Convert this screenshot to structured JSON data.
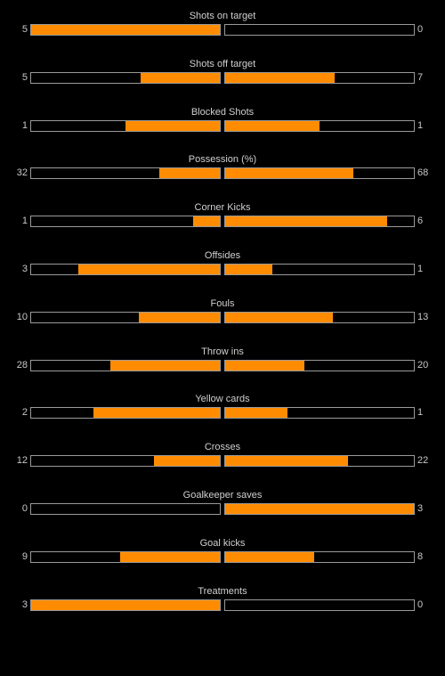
{
  "colors": {
    "background": "#000000",
    "bar_fill": "#ff8c00",
    "bar_border": "#9a9a9a",
    "text": "#c8c8c8"
  },
  "stats": [
    {
      "label": "Shots on target",
      "home": "5",
      "away": "0",
      "home_fraction": 1.0,
      "away_fraction": 0.0
    },
    {
      "label": "Shots off target",
      "home": "5",
      "away": "7",
      "home_fraction": 0.42,
      "away_fraction": 0.58
    },
    {
      "label": "Blocked Shots",
      "home": "1",
      "away": "1",
      "home_fraction": 0.5,
      "away_fraction": 0.5
    },
    {
      "label": "Possession (%)",
      "home": "32",
      "away": "68",
      "home_fraction": 0.32,
      "away_fraction": 0.68
    },
    {
      "label": "Corner Kicks",
      "home": "1",
      "away": "6",
      "home_fraction": 0.14,
      "away_fraction": 0.86
    },
    {
      "label": "Offsides",
      "home": "3",
      "away": "1",
      "home_fraction": 0.75,
      "away_fraction": 0.25
    },
    {
      "label": "Fouls",
      "home": "10",
      "away": "13",
      "home_fraction": 0.43,
      "away_fraction": 0.57
    },
    {
      "label": "Throw ins",
      "home": "28",
      "away": "20",
      "home_fraction": 0.58,
      "away_fraction": 0.42
    },
    {
      "label": "Yellow cards",
      "home": "2",
      "away": "1",
      "home_fraction": 0.67,
      "away_fraction": 0.33
    },
    {
      "label": "Crosses",
      "home": "12",
      "away": "22",
      "home_fraction": 0.35,
      "away_fraction": 0.65
    },
    {
      "label": "Goalkeeper saves",
      "home": "0",
      "away": "3",
      "home_fraction": 0.0,
      "away_fraction": 1.0
    },
    {
      "label": "Goal kicks",
      "home": "9",
      "away": "8",
      "home_fraction": 0.53,
      "away_fraction": 0.47
    },
    {
      "label": "Treatments",
      "home": "3",
      "away": "0",
      "home_fraction": 1.0,
      "away_fraction": 0.0
    }
  ]
}
